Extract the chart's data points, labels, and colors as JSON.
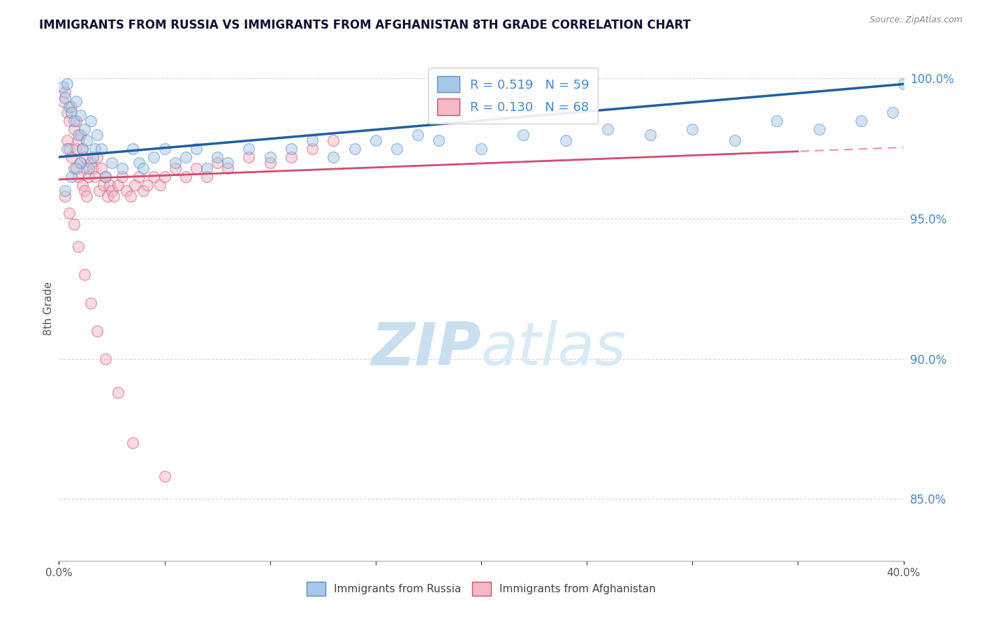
{
  "title": "IMMIGRANTS FROM RUSSIA VS IMMIGRANTS FROM AFGHANISTAN 8TH GRADE CORRELATION CHART",
  "source": "Source: ZipAtlas.com",
  "xlabel_russia": "Immigrants from Russia",
  "xlabel_afghanistan": "Immigrants from Afghanistan",
  "ylabel": "8th Grade",
  "xmin": 0.0,
  "xmax": 0.4,
  "ymin": 0.828,
  "ymax": 1.008,
  "yticks": [
    0.85,
    0.9,
    0.95,
    1.0
  ],
  "ytick_labels": [
    "85.0%",
    "90.0%",
    "95.0%",
    "100.0%"
  ],
  "russia_R": 0.519,
  "russia_N": 59,
  "afghanistan_R": 0.13,
  "afghanistan_N": 68,
  "blue_color": "#a8c8e8",
  "pink_color": "#f5b8c4",
  "trend_blue": "#2060a0",
  "trend_pink": "#d05070",
  "russia_x": [
    0.002,
    0.003,
    0.004,
    0.004,
    0.005,
    0.006,
    0.007,
    0.008,
    0.009,
    0.01,
    0.01,
    0.011,
    0.012,
    0.013,
    0.014,
    0.015,
    0.016,
    0.017,
    0.018,
    0.02,
    0.022,
    0.025,
    0.03,
    0.035,
    0.038,
    0.04,
    0.045,
    0.05,
    0.055,
    0.06,
    0.065,
    0.07,
    0.075,
    0.08,
    0.09,
    0.1,
    0.11,
    0.12,
    0.13,
    0.14,
    0.15,
    0.16,
    0.17,
    0.18,
    0.2,
    0.22,
    0.24,
    0.26,
    0.28,
    0.3,
    0.32,
    0.34,
    0.36,
    0.38,
    0.395,
    0.003,
    0.006,
    0.008,
    0.4
  ],
  "russia_y": [
    0.997,
    0.993,
    0.998,
    0.975,
    0.99,
    0.988,
    0.985,
    0.992,
    0.98,
    0.987,
    0.97,
    0.975,
    0.982,
    0.978,
    0.968,
    0.985,
    0.972,
    0.975,
    0.98,
    0.975,
    0.965,
    0.97,
    0.968,
    0.975,
    0.97,
    0.968,
    0.972,
    0.975,
    0.97,
    0.972,
    0.975,
    0.968,
    0.972,
    0.97,
    0.975,
    0.972,
    0.975,
    0.978,
    0.972,
    0.975,
    0.978,
    0.975,
    0.98,
    0.978,
    0.975,
    0.98,
    0.978,
    0.982,
    0.98,
    0.982,
    0.978,
    0.985,
    0.982,
    0.985,
    0.988,
    0.96,
    0.965,
    0.968,
    0.998
  ],
  "afghanistan_x": [
    0.002,
    0.003,
    0.004,
    0.004,
    0.005,
    0.005,
    0.006,
    0.006,
    0.007,
    0.007,
    0.008,
    0.008,
    0.009,
    0.009,
    0.01,
    0.01,
    0.011,
    0.011,
    0.012,
    0.012,
    0.013,
    0.013,
    0.014,
    0.015,
    0.016,
    0.017,
    0.018,
    0.019,
    0.02,
    0.021,
    0.022,
    0.023,
    0.024,
    0.025,
    0.026,
    0.028,
    0.03,
    0.032,
    0.034,
    0.036,
    0.038,
    0.04,
    0.042,
    0.045,
    0.048,
    0.05,
    0.055,
    0.06,
    0.065,
    0.07,
    0.075,
    0.08,
    0.09,
    0.1,
    0.11,
    0.12,
    0.13,
    0.003,
    0.005,
    0.007,
    0.009,
    0.012,
    0.015,
    0.018,
    0.022,
    0.028,
    0.035,
    0.05
  ],
  "afghanistan_y": [
    0.992,
    0.995,
    0.988,
    0.978,
    0.985,
    0.975,
    0.99,
    0.972,
    0.982,
    0.968,
    0.985,
    0.975,
    0.978,
    0.965,
    0.98,
    0.97,
    0.975,
    0.962,
    0.972,
    0.96,
    0.968,
    0.958,
    0.965,
    0.97,
    0.968,
    0.965,
    0.972,
    0.96,
    0.968,
    0.962,
    0.965,
    0.958,
    0.962,
    0.96,
    0.958,
    0.962,
    0.965,
    0.96,
    0.958,
    0.962,
    0.965,
    0.96,
    0.962,
    0.965,
    0.962,
    0.965,
    0.968,
    0.965,
    0.968,
    0.965,
    0.97,
    0.968,
    0.972,
    0.97,
    0.972,
    0.975,
    0.978,
    0.958,
    0.952,
    0.948,
    0.94,
    0.93,
    0.92,
    0.91,
    0.9,
    0.888,
    0.87,
    0.858
  ],
  "watermark_zip": "ZIP",
  "watermark_atlas": "atlas",
  "watermark_color": "#c8dff0",
  "grid_color": "#cccccc",
  "title_color": "#111133",
  "axis_label_color": "#555555",
  "ytick_color": "#4488cc",
  "xtick_color": "#555555"
}
